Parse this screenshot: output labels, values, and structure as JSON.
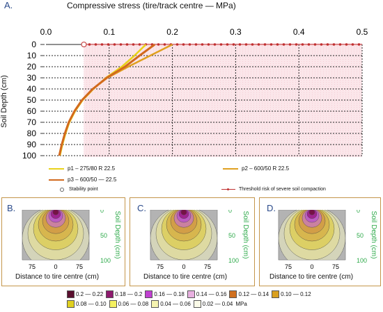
{
  "chart_data": [
    {
      "type": "line",
      "panel_label": "A.",
      "title": "Compressive stress (tire/track centre — MPa)",
      "ylabel": "Soil Depth (cm)",
      "x_ticks": [
        "0.0",
        "0.1",
        "0.2",
        "0.3",
        "0.4",
        "0.5"
      ],
      "y_ticks": [
        "0",
        "10",
        "20",
        "30",
        "40",
        "50",
        "60",
        "70",
        "80",
        "90",
        "100"
      ],
      "xlim": [
        0,
        0.5
      ],
      "ylim": [
        0,
        100
      ],
      "y_inverted": true,
      "x_axis_position": "top",
      "grid": true,
      "series": [
        {
          "name": "p1 – 275/80 R 22.5",
          "color": "#e8d21a",
          "x": [
            0.158,
            0.14,
            0.12,
            0.095,
            0.075,
            0.058,
            0.046,
            0.037,
            0.031,
            0.026,
            0.022
          ],
          "y": [
            0,
            10,
            20,
            30,
            40,
            50,
            60,
            70,
            80,
            90,
            100
          ]
        },
        {
          "name": "p2 – 600/50 R 22.5",
          "color": "#e0a020",
          "x": [
            0.2,
            0.165,
            0.13,
            0.097,
            0.074,
            0.057,
            0.045,
            0.036,
            0.03,
            0.025,
            0.021
          ],
          "y": [
            0,
            10,
            20,
            30,
            40,
            50,
            60,
            70,
            80,
            90,
            100
          ]
        },
        {
          "name": "p3 – 600/50 — 22.5",
          "color": "#d2691e",
          "x": [
            0.172,
            0.148,
            0.125,
            0.096,
            0.074,
            0.057,
            0.045,
            0.036,
            0.03,
            0.025,
            0.021
          ],
          "y": [
            0,
            10,
            20,
            30,
            40,
            50,
            60,
            70,
            80,
            90,
            100
          ]
        }
      ],
      "stability_point": {
        "label": "Stability point",
        "x": 0.06,
        "y": 0
      },
      "threshold": {
        "label": "Threshold risk of severe soil compaction",
        "x_start": 0.06,
        "color": "#c03030"
      }
    },
    {
      "type": "heatmap",
      "panel_label": "B.",
      "xlabel": "Distance to tire centre (cm)",
      "ylabel": "Soil Depth (cm)",
      "x_ticks": [
        "75",
        "0",
        "75"
      ],
      "y_ticks": [
        "0",
        "50",
        "100"
      ]
    },
    {
      "type": "heatmap",
      "panel_label": "C.",
      "xlabel": "Distance to tire centre (cm)",
      "ylabel": "Soil Depth (cm)",
      "x_ticks": [
        "75",
        "0",
        "75"
      ],
      "y_ticks": [
        "0",
        "50",
        "100"
      ]
    },
    {
      "type": "heatmap",
      "panel_label": "D.",
      "xlabel": "Distance to tire centre (cm)",
      "ylabel": "Soil Depth (cm)",
      "x_ticks": [
        "75",
        "0",
        "75"
      ],
      "y_ticks": [
        "0",
        "50",
        "100"
      ]
    }
  ],
  "bulb_colors": [
    "#efeec0",
    "#e6e08e",
    "#dccc5a",
    "#d6b24a",
    "#d19a46",
    "#c97bb0",
    "#b956c9",
    "#9a1a86",
    "#6e0f3a"
  ],
  "color_legend": {
    "unit": "MPa",
    "items": [
      {
        "label": "0.2 — 0.22",
        "color": "#5a0f2e"
      },
      {
        "label": "0.18 — 0.2",
        "color": "#8e1a6e"
      },
      {
        "label": "0.16 — 0.18",
        "color": "#c040d0"
      },
      {
        "label": "0.14 — 0.16",
        "color": "#e8b0e0"
      },
      {
        "label": "0.12 — 0.14",
        "color": "#d07020"
      },
      {
        "label": "0.10 — 0.12",
        "color": "#d9a020"
      },
      {
        "label": "0.08 — 0.10",
        "color": "#e0d020"
      },
      {
        "label": "0.06 — 0.08",
        "color": "#f4f060"
      },
      {
        "label": "0.04 — 0.06",
        "color": "#f6f4b0"
      },
      {
        "label": "0.02 — 0.04",
        "color": "#fbfbe8"
      }
    ]
  }
}
